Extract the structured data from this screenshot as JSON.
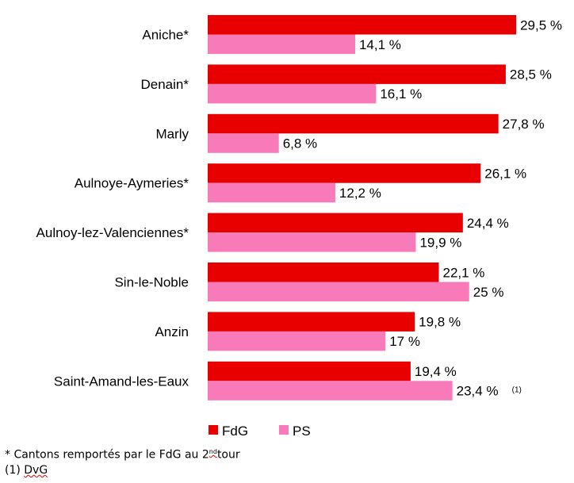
{
  "chart_data": {
    "type": "bar",
    "orientation": "horizontal",
    "categories": [
      "Aniche*",
      "Denain*",
      "Marly",
      "Aulnoye-Aymeries*",
      "Aulnoy-lez-Valenciennes*",
      "Sin-le-Noble",
      "Anzin",
      "Saint-Amand-les-Eaux"
    ],
    "series": [
      {
        "name": "FdG",
        "color": "#e80000",
        "values": [
          29.5,
          28.5,
          27.8,
          26.1,
          24.4,
          22.1,
          19.8,
          19.4
        ],
        "labels": [
          "29,5 %",
          "28,5 %",
          "27,8 %",
          "26,1 %",
          "24,4 %",
          "22,1 %",
          "19,8 %",
          "19,4 %"
        ]
      },
      {
        "name": "PS",
        "color": "#f87ab8",
        "values": [
          14.1,
          16.1,
          6.8,
          12.2,
          19.9,
          25,
          17,
          23.4
        ],
        "labels": [
          "14,1 %",
          "16,1 %",
          "6,8 %",
          "12,2 %",
          "19,9 %",
          "25 %",
          "17 %",
          "23,4 %"
        ]
      }
    ],
    "annotations": [
      {
        "category": "Saint-Amand-les-Eaux",
        "series": "PS",
        "text": "(1)"
      }
    ],
    "xlim": [
      0,
      30
    ],
    "grid": false,
    "axes_visible": false,
    "legend_placement": "bottom"
  },
  "footnotes": {
    "line1_prefix": "* Cantons remportés par le FdG au 2",
    "line1_sup": "nd",
    "line1_suffix": "tour",
    "line2_prefix": "(1) ",
    "line2_word": "DvG"
  }
}
